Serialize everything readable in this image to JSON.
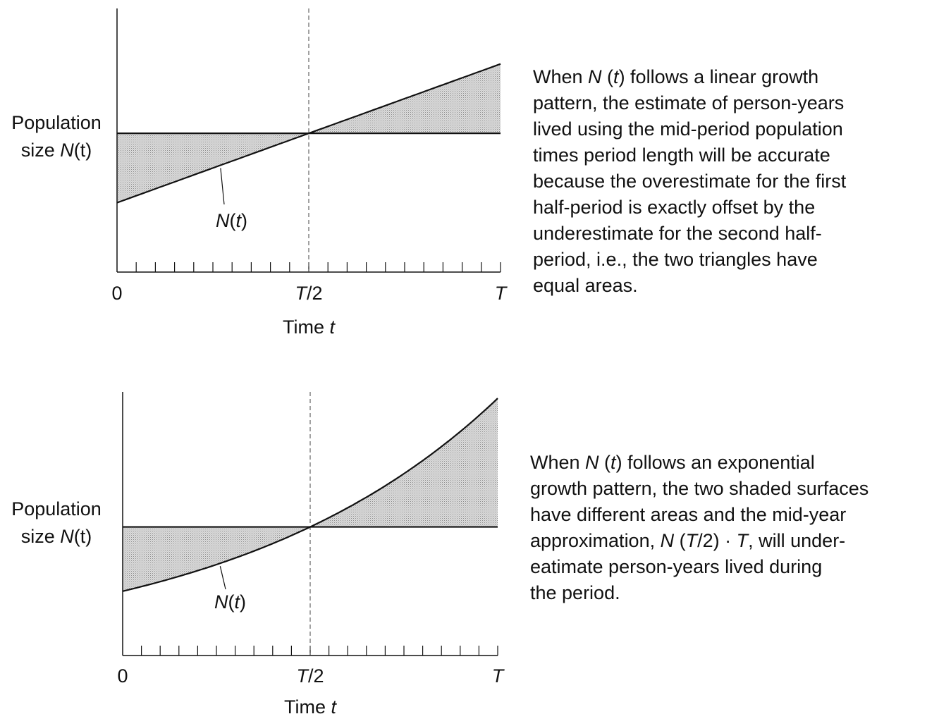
{
  "chart_data": [
    {
      "type": "area",
      "growth": "linear",
      "ylabel_line1": "Population",
      "ylabel_line2_prefix": "size ",
      "ylabel_line2_var": "N",
      "ylabel_line2_suffix": "(t)",
      "xlabel_prefix": "Time ",
      "xlabel_var": "t",
      "curve_label_var": "N",
      "curve_label_open": "(",
      "curve_label_arg": "t",
      "curve_label_close": ")",
      "ticks": [
        {
          "key": "0",
          "text": "0",
          "italic_part": ""
        },
        {
          "key": "half",
          "text": "/2",
          "italic_part": "T"
        },
        {
          "key": "end",
          "text": "",
          "italic_part": "T"
        }
      ],
      "x_range": [
        0,
        1
      ],
      "curve_start": 0.5,
      "curve_mid": 1.0,
      "curve_end": 1.5,
      "reference_level": 1.0,
      "minor_ticks": 20,
      "description": [
        [
          {
            "t": "When "
          },
          {
            "t": "N",
            "i": true
          },
          {
            "t": " ("
          },
          {
            "t": "t",
            "i": true
          },
          {
            "t": ") follows a linear growth"
          }
        ],
        [
          {
            "t": "pattern, the estimate of person-years"
          }
        ],
        [
          {
            "t": "lived using the mid-period population"
          }
        ],
        [
          {
            "t": "times period length will be accurate"
          }
        ],
        [
          {
            "t": "because the overestimate for the first"
          }
        ],
        [
          {
            "t": "half-period is exactly offset by the"
          }
        ],
        [
          {
            "t": "underestimate for the second half-"
          }
        ],
        [
          {
            "t": "period, i.e., the two triangles have"
          }
        ],
        [
          {
            "t": "equal areas."
          }
        ]
      ]
    },
    {
      "type": "area",
      "growth": "exponential",
      "ylabel_line1": "Population",
      "ylabel_line2_prefix": "size ",
      "ylabel_line2_var": "N",
      "ylabel_line2_suffix": "(t)",
      "xlabel_prefix": "Time ",
      "xlabel_var": "t",
      "curve_label_var": "N",
      "curve_label_open": "(",
      "curve_label_arg": "t",
      "curve_label_close": ")",
      "ticks": [
        {
          "key": "0",
          "text": "0",
          "italic_part": ""
        },
        {
          "key": "half",
          "text": "/2",
          "italic_part": "T"
        },
        {
          "key": "end",
          "text": "",
          "italic_part": "T"
        }
      ],
      "x_range": [
        0,
        1
      ],
      "curve_start": 0.5,
      "curve_mid": 1.0,
      "curve_end": 2.0,
      "reference_level": 1.0,
      "minor_ticks": 20,
      "description": [
        [
          {
            "t": "When "
          },
          {
            "t": "N",
            "i": true
          },
          {
            "t": " ("
          },
          {
            "t": "t",
            "i": true
          },
          {
            "t": ") follows an exponential"
          }
        ],
        [
          {
            "t": "growth pattern, the two shaded surfaces"
          }
        ],
        [
          {
            "t": "have different areas and the mid-year"
          }
        ],
        [
          {
            "t": "approximation, "
          },
          {
            "t": "N",
            "i": true
          },
          {
            "t": " ("
          },
          {
            "t": "T",
            "i": true
          },
          {
            "t": "/2) · "
          },
          {
            "t": "T",
            "i": true
          },
          {
            "t": ", will under-"
          }
        ],
        [
          {
            "t": "eatimate person-years lived during"
          }
        ],
        [
          {
            "t": "the period."
          }
        ]
      ]
    }
  ]
}
